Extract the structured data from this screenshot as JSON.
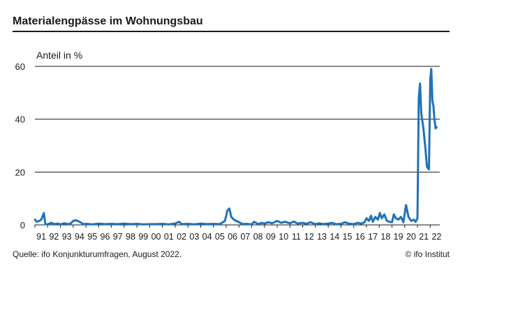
{
  "title": "Materialengpässe im Wohnungsbau",
  "source": "Quelle: ifo Konjunkturumfragen, August 2022.",
  "copyright": "© ifo Institut",
  "colors": {
    "line": "#1f72b8",
    "text": "#1a1a1a",
    "grid": "#1a1a1a"
  },
  "chart_data": {
    "type": "line",
    "title": "Materialengpässe im Wohnungsbau",
    "ylabel": "Anteil in %",
    "xlabel": "",
    "ylim": [
      0,
      60
    ],
    "yticks": [
      0,
      20,
      40,
      60
    ],
    "xlim": [
      1991,
      2022.75
    ],
    "xtick_labels": [
      "91",
      "92",
      "93",
      "94",
      "95",
      "96",
      "97",
      "98",
      "99",
      "00",
      "01",
      "02",
      "03",
      "04",
      "05",
      "06",
      "07",
      "08",
      "09",
      "10",
      "11",
      "12",
      "13",
      "14",
      "15",
      "16",
      "17",
      "18",
      "19",
      "20",
      "21",
      "22"
    ],
    "grid": "horizontal",
    "series": [
      {
        "x": [
          1991.0,
          1991.15,
          1991.35,
          1991.5,
          1991.7,
          1991.82,
          1992.0,
          1992.3,
          1992.5,
          1992.8,
          1993.0,
          1993.3,
          1993.6,
          1993.8,
          1994.0,
          1994.2,
          1994.5,
          1994.8,
          1995.0,
          1995.5,
          1996.0,
          1996.5,
          1997.0,
          1997.5,
          1998.0,
          1998.5,
          1999.0,
          1999.5,
          2000.0,
          2000.5,
          2001.0,
          2001.5,
          2002.0,
          2002.3,
          2002.5,
          2003.0,
          2003.5,
          2004.0,
          2004.5,
          2005.0,
          2005.5,
          2005.9,
          2006.1,
          2006.25,
          2006.4,
          2006.6,
          2006.8,
          2007.0,
          2007.3,
          2007.6,
          2008.0,
          2008.2,
          2008.5,
          2008.8,
          2009.0,
          2009.3,
          2009.6,
          2010.0,
          2010.3,
          2010.6,
          2011.0,
          2011.3,
          2011.6,
          2012.0,
          2012.3,
          2012.6,
          2013.0,
          2013.3,
          2013.6,
          2014.0,
          2014.3,
          2014.6,
          2015.0,
          2015.3,
          2015.6,
          2016.0,
          2016.3,
          2016.6,
          2016.85,
          2017.0,
          2017.2,
          2017.35,
          2017.5,
          2017.7,
          2017.9,
          2018.05,
          2018.2,
          2018.4,
          2018.6,
          2018.8,
          2019.0,
          2019.15,
          2019.3,
          2019.5,
          2019.7,
          2019.9,
          2020.1,
          2020.3,
          2020.5,
          2020.7,
          2020.85,
          2021.0,
          2021.1,
          2021.2,
          2021.3,
          2021.45,
          2021.6,
          2021.75,
          2021.9,
          2022.0,
          2022.08,
          2022.17,
          2022.25,
          2022.33,
          2022.42,
          2022.5
        ],
        "y": [
          2.0,
          1.2,
          1.5,
          2.0,
          4.5,
          0.3,
          0.2,
          0.8,
          0.3,
          0.5,
          0.2,
          0.6,
          0.3,
          0.5,
          1.5,
          1.8,
          1.2,
          0.3,
          0.4,
          0.2,
          0.5,
          0.3,
          0.4,
          0.3,
          0.5,
          0.3,
          0.4,
          0.2,
          0.3,
          0.3,
          0.4,
          0.2,
          0.5,
          1.2,
          0.3,
          0.4,
          0.2,
          0.5,
          0.3,
          0.4,
          0.3,
          1.5,
          5.5,
          6.2,
          3.0,
          2.0,
          1.5,
          1.0,
          0.3,
          0.4,
          0.2,
          1.2,
          0.3,
          0.8,
          0.5,
          1.0,
          0.6,
          1.5,
          0.8,
          1.2,
          0.6,
          1.3,
          0.5,
          0.8,
          0.4,
          1.0,
          0.3,
          0.6,
          0.3,
          0.5,
          0.8,
          0.3,
          0.4,
          1.0,
          0.5,
          0.3,
          0.8,
          0.5,
          1.0,
          2.5,
          1.5,
          3.5,
          1.2,
          3.0,
          2.0,
          4.5,
          2.5,
          4.0,
          1.5,
          1.2,
          1.0,
          4.0,
          2.5,
          2.0,
          3.0,
          1.0,
          7.5,
          3.0,
          1.5,
          2.0,
          1.2,
          2.5,
          48.0,
          53.5,
          42.0,
          37.0,
          30.0,
          22.0,
          21.0,
          55.0,
          59.0,
          47.0,
          45.0,
          40.0,
          36.5,
          37.0
        ]
      }
    ]
  }
}
